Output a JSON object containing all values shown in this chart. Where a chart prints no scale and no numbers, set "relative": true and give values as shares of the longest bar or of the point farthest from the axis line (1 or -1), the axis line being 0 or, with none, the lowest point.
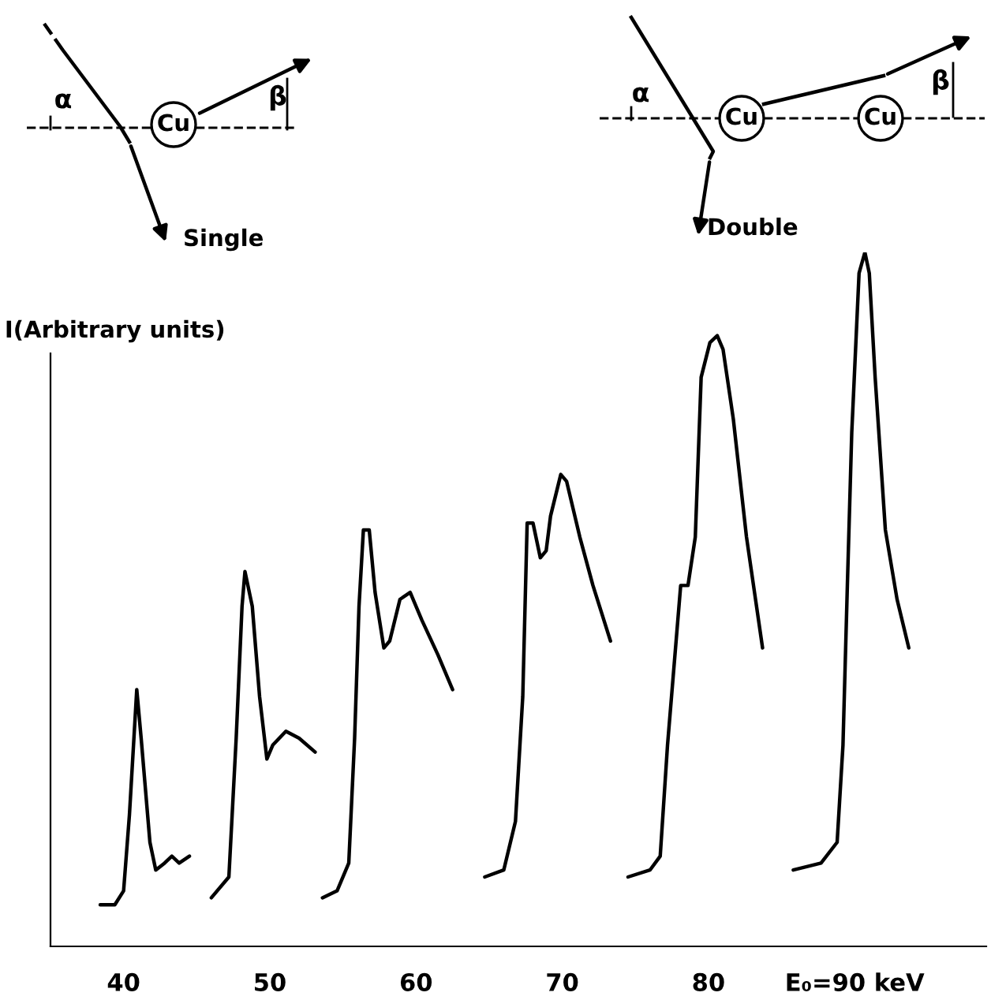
{
  "chart_data": {
    "type": "line",
    "relative": true,
    "ylabel": "I(Arbitrary units)",
    "annotations": [
      "α",
      "β",
      "Cu",
      "Single",
      "α",
      "β",
      "Cu",
      "Cu",
      "Double"
    ],
    "xlim": [
      35,
      99
    ],
    "xticks": [
      40,
      50,
      60,
      70,
      80,
      {
        "value": 90,
        "label": "E₀=90 keV"
      }
    ],
    "marker": "none",
    "line_style": "solid",
    "grid": false,
    "legend": false,
    "series": [
      {
        "color": "#000000",
        "x": [
          38.4,
          39.4,
          40.0,
          40.4,
          40.9,
          41.2,
          41.8,
          42.2,
          42.8,
          43.3,
          43.8,
          44.5
        ],
        "values": [
          0.06,
          0.06,
          0.08,
          0.19,
          0.37,
          0.3,
          0.15,
          0.11,
          0.12,
          0.13,
          0.12,
          0.13
        ]
      },
      {
        "color": "#000000",
        "x": [
          46.0,
          47.2,
          47.7,
          48.1,
          48.3,
          48.8,
          49.3,
          49.8,
          50.2,
          51.1,
          52.0,
          53.1
        ],
        "values": [
          0.07,
          0.1,
          0.3,
          0.49,
          0.54,
          0.49,
          0.36,
          0.27,
          0.29,
          0.31,
          0.3,
          0.28
        ]
      },
      {
        "color": "#000000",
        "x": [
          53.6,
          54.6,
          55.4,
          55.8,
          56.1,
          56.4,
          56.8,
          57.2,
          57.8,
          58.2,
          58.9,
          59.6,
          60.4,
          61.5,
          62.5
        ],
        "values": [
          0.07,
          0.08,
          0.12,
          0.3,
          0.49,
          0.6,
          0.6,
          0.51,
          0.43,
          0.44,
          0.5,
          0.51,
          0.47,
          0.42,
          0.37
        ]
      },
      {
        "color": "#000000",
        "x": [
          64.7,
          66.0,
          66.8,
          67.3,
          67.6,
          68.0,
          68.5,
          68.9,
          69.2,
          69.9,
          70.3,
          71.2,
          72.1,
          73.3
        ],
        "values": [
          0.1,
          0.11,
          0.18,
          0.36,
          0.61,
          0.61,
          0.56,
          0.57,
          0.62,
          0.68,
          0.67,
          0.59,
          0.52,
          0.44
        ]
      },
      {
        "color": "#000000",
        "x": [
          74.5,
          76.0,
          76.7,
          77.2,
          78.1,
          78.6,
          79.1,
          79.5,
          80.1,
          80.6,
          81.0,
          81.7,
          82.6,
          83.7
        ],
        "values": [
          0.1,
          0.11,
          0.13,
          0.29,
          0.52,
          0.52,
          0.59,
          0.82,
          0.87,
          0.88,
          0.86,
          0.76,
          0.59,
          0.43
        ]
      },
      {
        "color": "#000000",
        "x": [
          85.8,
          87.7,
          88.8,
          89.2,
          89.5,
          89.8,
          90.3,
          90.7,
          91.0,
          91.4,
          92.1,
          92.9,
          93.7
        ],
        "values": [
          0.11,
          0.12,
          0.15,
          0.29,
          0.52,
          0.74,
          0.97,
          1.0,
          0.97,
          0.82,
          0.6,
          0.5,
          0.43
        ]
      }
    ]
  }
}
